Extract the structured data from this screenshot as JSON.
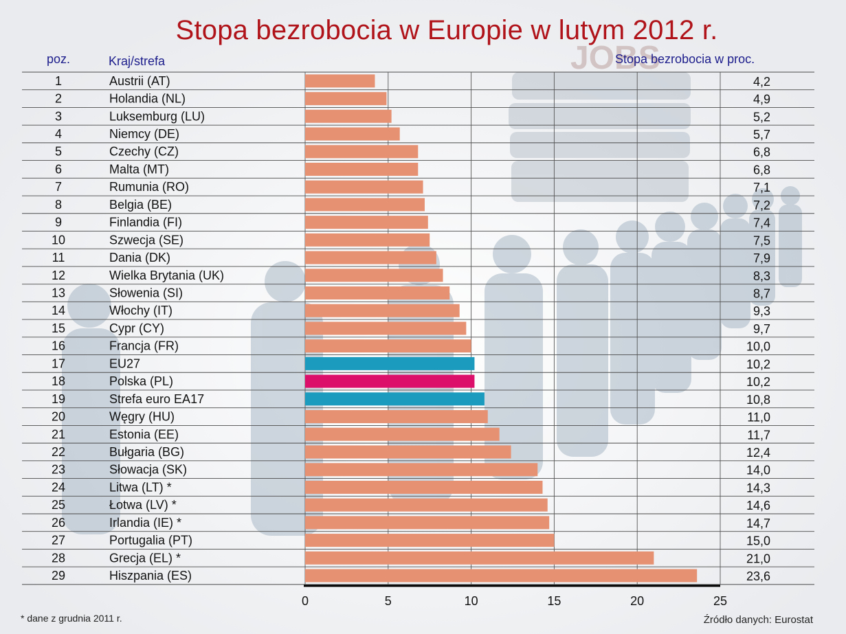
{
  "title": "Stopa bezrobocia w Europie w lutym 2012 r.",
  "headers": {
    "position": "poz.",
    "country": "Kraj/strefa",
    "rate": "Stopa bezrobocia w proc."
  },
  "background_text": "JOBS",
  "footnote": "* dane z grudnia 2011 r.",
  "source": "Źródło danych: Eurostat",
  "colors": {
    "default_bar": "#e59172",
    "eu_bar": "#1b9bbd",
    "poland_bar": "#dc106b",
    "title": "#b0141a",
    "header": "#1c1c8c"
  },
  "chart_data": {
    "type": "bar",
    "orientation": "horizontal",
    "title": "Stopa bezrobocia w Europie w lutym 2012 r.",
    "xlim": [
      0,
      25
    ],
    "xticks": [
      0,
      5,
      10,
      15,
      20,
      25
    ],
    "grid": true,
    "rows": [
      {
        "pos": "1",
        "country": "Austrii (AT)",
        "value": 4.2,
        "label": "4,2",
        "highlight": "none"
      },
      {
        "pos": "2",
        "country": "Holandia (NL)",
        "value": 4.9,
        "label": "4,9",
        "highlight": "none"
      },
      {
        "pos": "3",
        "country": "Luksemburg (LU)",
        "value": 5.2,
        "label": "5,2",
        "highlight": "none"
      },
      {
        "pos": "4",
        "country": "Niemcy (DE)",
        "value": 5.7,
        "label": "5,7",
        "highlight": "none"
      },
      {
        "pos": "5",
        "country": "Czechy (CZ)",
        "value": 6.8,
        "label": "6,8",
        "highlight": "none"
      },
      {
        "pos": "6",
        "country": "Malta (MT)",
        "value": 6.8,
        "label": "6,8",
        "highlight": "none"
      },
      {
        "pos": "7",
        "country": "Rumunia (RO)",
        "value": 7.1,
        "label": "7,1",
        "highlight": "none"
      },
      {
        "pos": "8",
        "country": "Belgia (BE)",
        "value": 7.2,
        "label": "7,2",
        "highlight": "none"
      },
      {
        "pos": "9",
        "country": "Finlandia (FI)",
        "value": 7.4,
        "label": "7,4",
        "highlight": "none"
      },
      {
        "pos": "10",
        "country": "Szwecja (SE)",
        "value": 7.5,
        "label": "7,5",
        "highlight": "none"
      },
      {
        "pos": "11",
        "country": "Dania (DK)",
        "value": 7.9,
        "label": "7,9",
        "highlight": "none"
      },
      {
        "pos": "12",
        "country": "Wielka Brytania (UK)",
        "value": 8.3,
        "label": "8,3",
        "highlight": "none"
      },
      {
        "pos": "13",
        "country": "Słowenia (SI)",
        "value": 8.7,
        "label": "8,7",
        "highlight": "none"
      },
      {
        "pos": "14",
        "country": "Włochy (IT)",
        "value": 9.3,
        "label": "9,3",
        "highlight": "none"
      },
      {
        "pos": "15",
        "country": "Cypr (CY)",
        "value": 9.7,
        "label": "9,7",
        "highlight": "none"
      },
      {
        "pos": "16",
        "country": "Francja (FR)",
        "value": 10.0,
        "label": "10,0",
        "highlight": "none"
      },
      {
        "pos": "17",
        "country": "EU27",
        "value": 10.2,
        "label": "10,2",
        "highlight": "eu"
      },
      {
        "pos": "18",
        "country": "Polska (PL)",
        "value": 10.2,
        "label": "10,2",
        "highlight": "poland"
      },
      {
        "pos": "19",
        "country": "Strefa euro EA17",
        "value": 10.8,
        "label": "10,8",
        "highlight": "eu"
      },
      {
        "pos": "20",
        "country": "Węgry (HU)",
        "value": 11.0,
        "label": "11,0",
        "highlight": "none"
      },
      {
        "pos": "21",
        "country": "Estonia (EE)",
        "value": 11.7,
        "label": "11,7",
        "highlight": "none"
      },
      {
        "pos": "22",
        "country": "Bułgaria (BG)",
        "value": 12.4,
        "label": "12,4",
        "highlight": "none"
      },
      {
        "pos": "23",
        "country": "Słowacja (SK)",
        "value": 14.0,
        "label": "14,0",
        "highlight": "none"
      },
      {
        "pos": "24",
        "country": "Litwa (LT) *",
        "value": 14.3,
        "label": "14,3",
        "highlight": "none"
      },
      {
        "pos": "25",
        "country": "Łotwa (LV) *",
        "value": 14.6,
        "label": "14,6",
        "highlight": "none"
      },
      {
        "pos": "26",
        "country": "Irlandia (IE) *",
        "value": 14.7,
        "label": "14,7",
        "highlight": "none"
      },
      {
        "pos": "27",
        "country": "Portugalia (PT)",
        "value": 15.0,
        "label": "15,0",
        "highlight": "none"
      },
      {
        "pos": "28",
        "country": "Grecja (EL) *",
        "value": 21.0,
        "label": "21,0",
        "highlight": "none"
      },
      {
        "pos": "29",
        "country": "Hiszpania (ES)",
        "value": 23.6,
        "label": "23,6",
        "highlight": "none"
      }
    ]
  }
}
